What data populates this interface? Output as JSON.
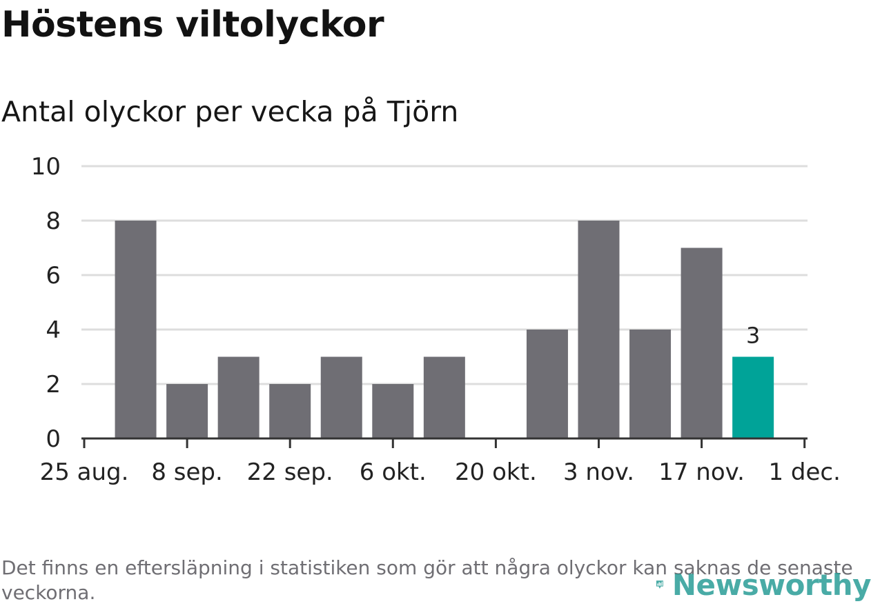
{
  "title": "Höstens viltolyckor",
  "subtitle": "Antal olyckor per vecka på Tjörn",
  "note": "Det finns en eftersläpning i statistiken som gör att några olyckor kan saknas de senaste veckorna.",
  "logo": {
    "text": "Newsworthy",
    "icon": "bar-chart-location-icon"
  },
  "colors": {
    "bar": "#6f6e74",
    "highlight": "#00a398",
    "grid": "#dddddd",
    "axis": "#333333",
    "text": "#222222",
    "brand": "#2a9d97"
  },
  "chart_data": {
    "type": "bar",
    "title": "Höstens viltolyckor",
    "subtitle": "Antal olyckor per vecka på Tjörn",
    "xlabel": "",
    "ylabel": "",
    "ylim": [
      0,
      10
    ],
    "yticks": [
      0,
      2,
      4,
      6,
      8,
      10
    ],
    "grid": true,
    "x_tick_labels": [
      "25 aug.",
      "8 sep.",
      "22 sep.",
      "6 okt.",
      "20 okt.",
      "3 nov.",
      "17 nov.",
      "1 dec."
    ],
    "values": [
      8,
      2,
      3,
      2,
      3,
      2,
      3,
      0,
      4,
      8,
      4,
      7,
      3
    ],
    "highlight_index": 12,
    "data_labels": [
      {
        "index": 12,
        "text": "3"
      }
    ]
  }
}
